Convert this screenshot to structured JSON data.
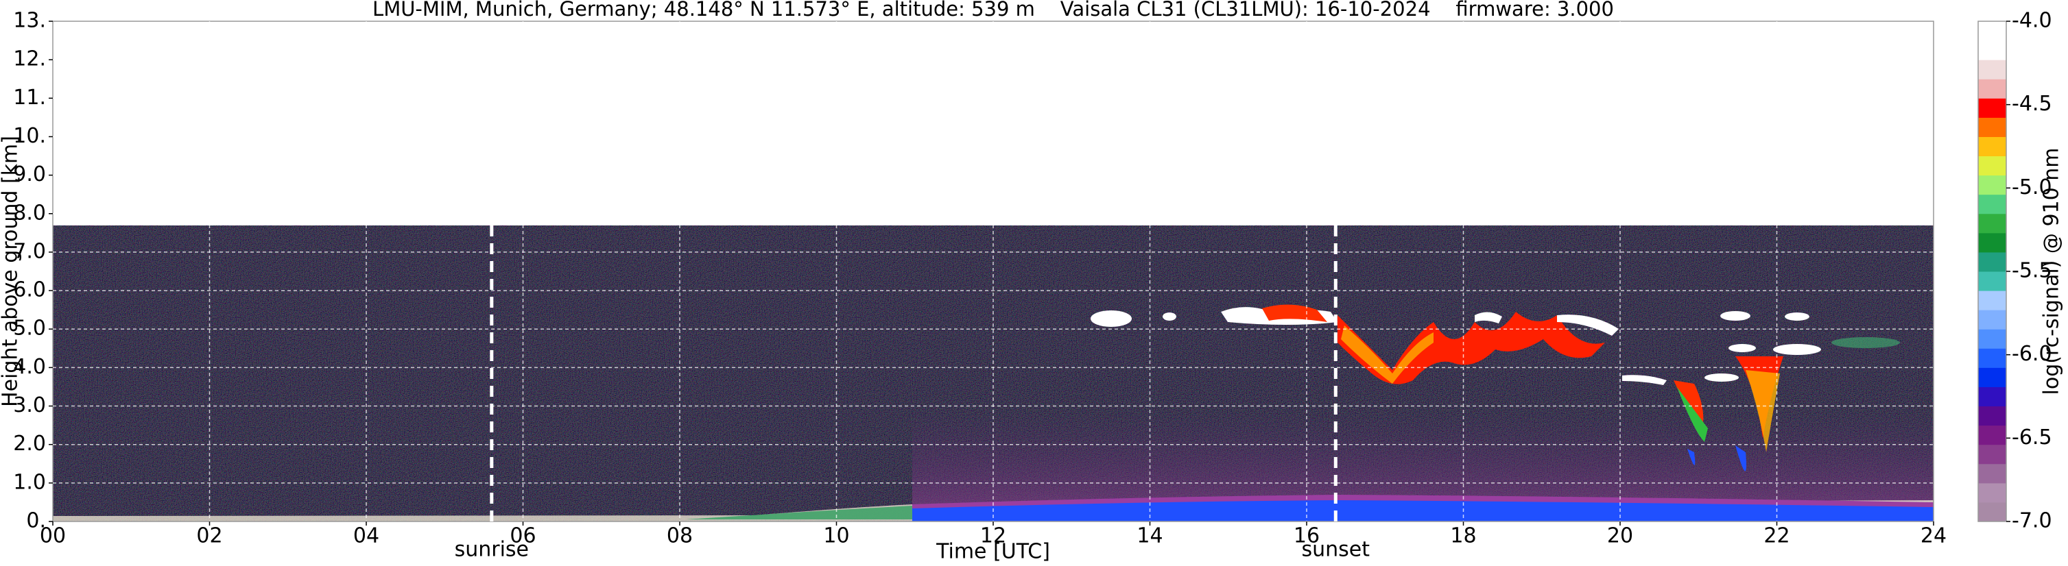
{
  "chart_data": {
    "type": "heatmap",
    "title": "LMU-MIM, Munich, Germany; 48.148° N 11.573° E, altitude: 539 m    Vaisala CL31 (CL31LMU): 16-10-2024    firmware: 3.000",
    "x_label": "Time [UTC]",
    "y_label": "Height above ground [km]",
    "xlim": [
      0,
      24
    ],
    "xticks": [
      {
        "value": 0,
        "label": "00"
      },
      {
        "value": 2,
        "label": "02"
      },
      {
        "value": 4,
        "label": "04"
      },
      {
        "value": 6,
        "label": "06"
      },
      {
        "value": 8,
        "label": "08"
      },
      10,
      12,
      14,
      16,
      18,
      20,
      22,
      24
    ],
    "ylim": [
      0,
      13
    ],
    "yticks": [
      {
        "value": 0,
        "label": "0."
      },
      {
        "value": 1,
        "label": "1.0"
      },
      {
        "value": 2,
        "label": "2.0"
      },
      {
        "value": 3,
        "label": "3.0"
      },
      {
        "value": 4,
        "label": "4.0"
      },
      {
        "value": 5,
        "label": "5.0"
      },
      {
        "value": 6,
        "label": "6.0"
      },
      {
        "value": 7,
        "label": "7.0"
      },
      {
        "value": 8,
        "label": "8.0"
      },
      {
        "value": 9,
        "label": "9.0"
      },
      {
        "value": 10,
        "label": "10."
      },
      {
        "value": 11,
        "label": "11."
      },
      {
        "value": 12,
        "label": "12."
      },
      {
        "value": 13,
        "label": "13."
      }
    ],
    "grid": true,
    "annotations": [
      {
        "text": "sunrise",
        "x": 5.6
      },
      {
        "text": "sunset",
        "x": 16.37
      }
    ],
    "colorbar": {
      "label": "log(rc-signal) @ 910 nm",
      "clim": [
        -7,
        -4
      ],
      "ticks": [
        {
          "value": -7,
          "label": "-7.0"
        },
        -6.5,
        {
          "value": -6,
          "label": "-6.0"
        },
        -5.5,
        {
          "value": -5,
          "label": "-5.0"
        },
        -4.5,
        {
          "value": -4,
          "label": "-4.0"
        }
      ],
      "colors": [
        "#a88aa6",
        "#b08fb0",
        "#9a6a9c",
        "#8a3e8e",
        "#7a1a86",
        "#5a0a90",
        "#3010c0",
        "#0030f0",
        "#2060ff",
        "#5090ff",
        "#80b0ff",
        "#a8cbff",
        "#40c0b0",
        "#20a080",
        "#109030",
        "#30b040",
        "#50d080",
        "#a0f070",
        "#e0f040",
        "#ffc010",
        "#ff7000",
        "#ff0000",
        "#f0b0b0",
        "#f0dcdc",
        "#ffffff",
        "#ffffff"
      ]
    }
  }
}
